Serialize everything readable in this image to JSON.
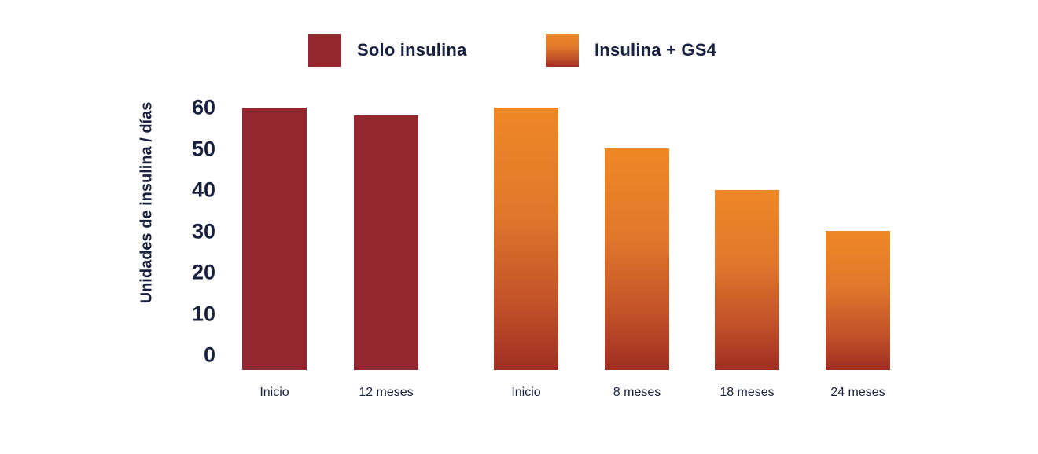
{
  "chart_data": {
    "type": "bar",
    "title": "",
    "xlabel": "",
    "ylabel": "Unidades de insulina / días",
    "ylim": [
      0,
      60
    ],
    "yticks": [
      0,
      10,
      20,
      30,
      40,
      50,
      60
    ],
    "grid": false,
    "legend_position": "top-center",
    "background_color": "#FFFFFF",
    "text_color": "#18203F",
    "categories": [
      "Inicio",
      "12 meses",
      "Inicio",
      "8 meses",
      "18 meses",
      "24 meses"
    ],
    "series": [
      {
        "name": "Solo insulina",
        "fill": {
          "type": "solid",
          "color": "#93262E"
        },
        "points": [
          {
            "category": "Inicio",
            "value": 60
          },
          {
            "category": "12 meses",
            "value": 58
          }
        ]
      },
      {
        "name": "Insulina + GS4",
        "fill": {
          "type": "gradient",
          "stops": [
            [
              "#EF8726",
              "0%"
            ],
            [
              "#E0782C",
              "40%"
            ],
            [
              "#C25129",
              "75%"
            ],
            [
              "#9E2E21",
              "100%"
            ]
          ]
        },
        "points": [
          {
            "category": "Inicio",
            "value": 60
          },
          {
            "category": "8 meses",
            "value": 50
          },
          {
            "category": "18 meses",
            "value": 40
          },
          {
            "category": "24 meses",
            "value": 30
          }
        ]
      }
    ]
  }
}
